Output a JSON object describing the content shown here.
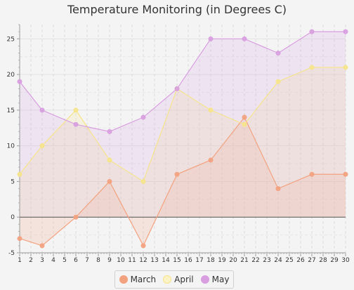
{
  "chart_data": {
    "type": "area",
    "title": "Temperature Monitoring (in Degrees C)",
    "xlabel": "",
    "ylabel": "",
    "xlim": [
      1,
      30
    ],
    "ylim": [
      -5,
      27
    ],
    "x_ticks": [
      1,
      2,
      3,
      4,
      5,
      6,
      7,
      8,
      9,
      10,
      11,
      12,
      13,
      14,
      15,
      16,
      17,
      18,
      19,
      20,
      21,
      22,
      23,
      24,
      25,
      26,
      27,
      28,
      29,
      30
    ],
    "y_ticks": [
      -5,
      0,
      5,
      10,
      15,
      20,
      25
    ],
    "grid": true,
    "legend_position": "bottom",
    "series": [
      {
        "name": "March",
        "color": "#f3a27f",
        "x": [
          1,
          3,
          6,
          9,
          12,
          15,
          18,
          21,
          24,
          27,
          30
        ],
        "y": [
          -3,
          -4,
          0,
          5,
          -4,
          6,
          8,
          14,
          4,
          6,
          6
        ]
      },
      {
        "name": "April",
        "color": "#f6e48a",
        "x": [
          1,
          3,
          6,
          9,
          12,
          15,
          18,
          21,
          24,
          27,
          30
        ],
        "y": [
          6,
          10,
          15,
          8,
          5,
          18,
          15,
          13,
          19,
          21,
          21
        ]
      },
      {
        "name": "May",
        "color": "#d89ee0",
        "x": [
          1,
          3,
          6,
          9,
          12,
          15,
          18,
          21,
          24,
          27,
          30
        ],
        "y": [
          19,
          15,
          13,
          12,
          14,
          18,
          25,
          25,
          23,
          26,
          26
        ]
      }
    ]
  }
}
